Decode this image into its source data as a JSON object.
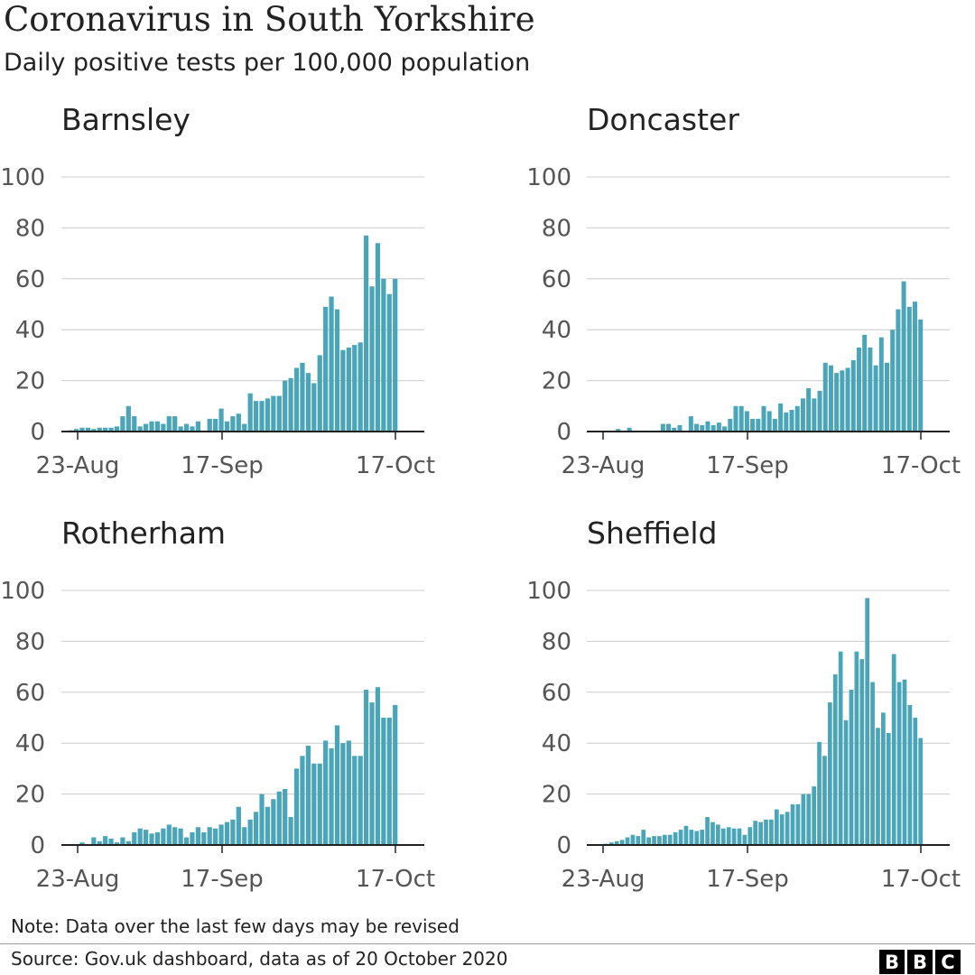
{
  "title": "Coronavirus in South Yorkshire",
  "subtitle": "Daily positive tests per 100,000 population",
  "note": "Note: Data over the last few days may be revised",
  "source": "Source: Gov.uk dashboard, data as of 20 October 2020",
  "logo": {
    "letters": [
      "B",
      "B",
      "C"
    ]
  },
  "colors": {
    "bar": "#4aa5b8",
    "grid": "#cccccc",
    "axis": "#222222",
    "tick_label": "#555555"
  },
  "chart_data": [
    {
      "type": "bar",
      "title": "Barnsley",
      "x_range": [
        "21-Aug",
        "17-Oct"
      ],
      "x_ticks": [
        "23-Aug",
        "17-Sep",
        "17-Oct"
      ],
      "ylim": [
        0,
        100
      ],
      "y_ticks": [
        "0",
        "20",
        "40",
        "60",
        "80",
        "100"
      ],
      "values": [
        0,
        0.5,
        1,
        1.5,
        1.5,
        1,
        1.5,
        1.5,
        1.5,
        2,
        6,
        10,
        6,
        2,
        3,
        4,
        4,
        3,
        6,
        6,
        2,
        3,
        2,
        4,
        0,
        5,
        5,
        9,
        4,
        6,
        7,
        3,
        15,
        12,
        12,
        13,
        14,
        14,
        20,
        21,
        25,
        27,
        23,
        19,
        30,
        49,
        53,
        48,
        32,
        33,
        34,
        35,
        77,
        57,
        74,
        60,
        54,
        60
      ]
    },
    {
      "type": "bar",
      "title": "Doncaster",
      "x_range": [
        "21-Aug",
        "17-Oct"
      ],
      "x_ticks": [
        "23-Aug",
        "17-Sep",
        "17-Oct"
      ],
      "ylim": [
        0,
        100
      ],
      "y_ticks": [
        "0",
        "20",
        "40",
        "60",
        "80",
        "100"
      ],
      "values": [
        0,
        0,
        0,
        0,
        0,
        1,
        0,
        1.5,
        0,
        0,
        0,
        0,
        0,
        3,
        3,
        1.5,
        2.5,
        0,
        6,
        3,
        2.5,
        4,
        2.5,
        3.5,
        2,
        5,
        10,
        10,
        8,
        5,
        5,
        10,
        8,
        5,
        11,
        7.5,
        8.5,
        10,
        13,
        17,
        13,
        16,
        27,
        26,
        23,
        24,
        25,
        28,
        33,
        38,
        33,
        26,
        37,
        27,
        40,
        48,
        59,
        49,
        51,
        44
      ]
    },
    {
      "type": "bar",
      "title": "Rotherham",
      "x_range": [
        "21-Aug",
        "17-Oct"
      ],
      "x_ticks": [
        "23-Aug",
        "17-Sep",
        "17-Oct"
      ],
      "ylim": [
        0,
        100
      ],
      "y_ticks": [
        "0",
        "20",
        "40",
        "60",
        "80",
        "100"
      ],
      "values": [
        0,
        0,
        0,
        1,
        0,
        3,
        1.5,
        3.5,
        2.5,
        1,
        3,
        1.5,
        5,
        6.5,
        6,
        4.5,
        5,
        6.5,
        8,
        7,
        6.5,
        3,
        5,
        7,
        5,
        7,
        6.5,
        8,
        9,
        10,
        15,
        7,
        10,
        13,
        20,
        15,
        18,
        21,
        22,
        11,
        30,
        35,
        39,
        32,
        32,
        41,
        38,
        47,
        40,
        41,
        35,
        35,
        61,
        56,
        62,
        50,
        50,
        55
      ]
    },
    {
      "type": "bar",
      "title": "Sheffield",
      "x_range": [
        "21-Aug",
        "17-Oct"
      ],
      "x_ticks": [
        "23-Aug",
        "17-Sep",
        "17-Oct"
      ],
      "ylim": [
        0,
        100
      ],
      "y_ticks": [
        "0",
        "20",
        "40",
        "60",
        "80",
        "100"
      ],
      "values": [
        0,
        0,
        0,
        0.5,
        1,
        1.5,
        2,
        3,
        4,
        3.5,
        6,
        3,
        3.5,
        3.5,
        4,
        4,
        5,
        6,
        7.5,
        6,
        5.5,
        6,
        11,
        9,
        8,
        6.5,
        7,
        6.5,
        6.5,
        4,
        7,
        9.5,
        9,
        10,
        10,
        14,
        12,
        13,
        16,
        16,
        20,
        20,
        23,
        40.5,
        35,
        56,
        67,
        76,
        49,
        61,
        76,
        73,
        97,
        64,
        46,
        52,
        44,
        75,
        64,
        65,
        55,
        50,
        42
      ]
    }
  ]
}
